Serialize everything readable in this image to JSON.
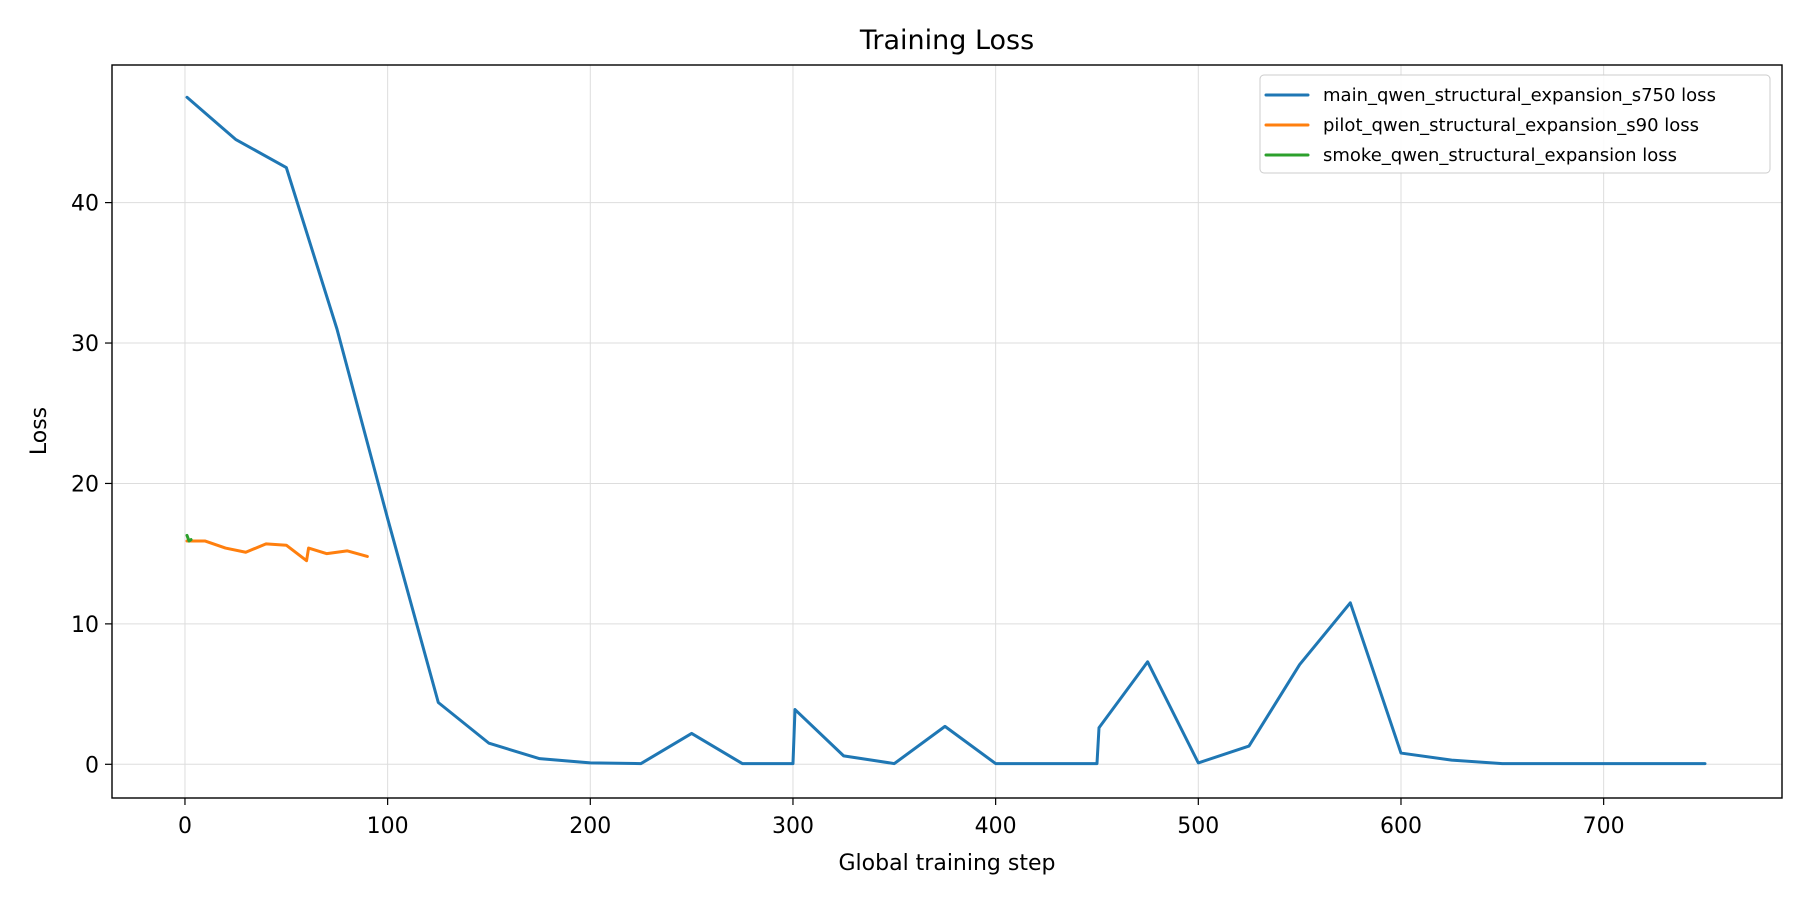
{
  "chart_data": {
    "type": "line",
    "title": "Training Loss",
    "xlabel": "Global training step",
    "ylabel": "Loss",
    "xlim": [
      -36,
      788
    ],
    "ylim": [
      -2.4,
      49.8
    ],
    "xticks": [
      0,
      100,
      200,
      300,
      400,
      500,
      600,
      700
    ],
    "yticks": [
      0,
      10,
      20,
      30,
      40
    ],
    "grid": true,
    "legend_position": "top-right",
    "series": [
      {
        "name": "main_qwen_structural_expansion_s750 loss",
        "color": "#1f77b4",
        "x": [
          1,
          25,
          50,
          75,
          100,
          125,
          150,
          175,
          200,
          225,
          250,
          275,
          300,
          301,
          325,
          350,
          375,
          400,
          425,
          450,
          451,
          475,
          500,
          525,
          550,
          575,
          600,
          625,
          650,
          675,
          700,
          725,
          750
        ],
        "y": [
          47.5,
          44.5,
          42.5,
          31.0,
          17.5,
          4.4,
          1.5,
          0.4,
          0.1,
          0.05,
          2.2,
          0.05,
          0.05,
          3.9,
          0.6,
          0.05,
          2.7,
          0.05,
          0.05,
          0.05,
          2.6,
          7.3,
          0.1,
          1.3,
          7.1,
          11.5,
          0.8,
          0.3,
          0.05,
          0.05,
          0.05,
          0.05,
          0.05
        ]
      },
      {
        "name": "pilot_qwen_structural_expansion_s90 loss",
        "color": "#ff7f0e",
        "x": [
          1,
          10,
          20,
          30,
          40,
          50,
          60,
          61,
          70,
          80,
          90
        ],
        "y": [
          15.9,
          15.9,
          15.4,
          15.1,
          15.7,
          15.6,
          14.5,
          15.4,
          15.0,
          15.2,
          14.8
        ]
      },
      {
        "name": "smoke_qwen_structural_expansion loss",
        "color": "#2ca02c",
        "x": [
          1,
          2,
          3
        ],
        "y": [
          16.3,
          15.9,
          16.0
        ]
      }
    ]
  }
}
